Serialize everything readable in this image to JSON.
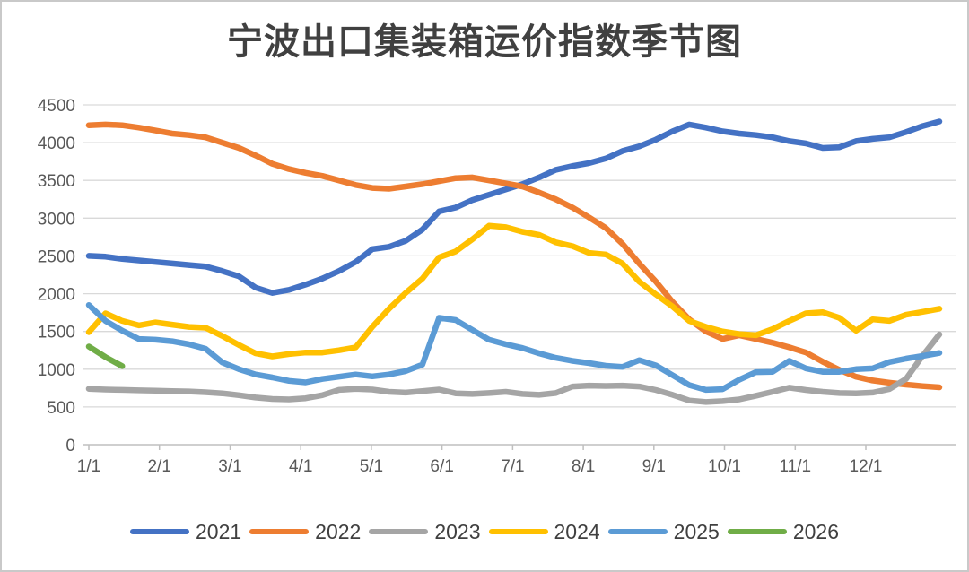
{
  "window": {
    "background": "#FFFFFF",
    "border_color": "#C9C9C9"
  },
  "title": {
    "text": "宁波出口集装箱运价指数季节图",
    "color": "#404040"
  },
  "chart_data": {
    "type": "line",
    "title": "宁波出口集装箱运价指数季节图",
    "xlabel": "",
    "ylabel": "",
    "x_tick_labels": [
      "1/1",
      "2/1",
      "3/1",
      "4/1",
      "5/1",
      "6/1",
      "7/1",
      "8/1",
      "9/1",
      "10/1",
      "11/1",
      "12/1"
    ],
    "y_ticks": [
      0,
      500,
      1000,
      1500,
      2000,
      2500,
      3000,
      3500,
      4000,
      4500
    ],
    "ylim": [
      0,
      4500
    ],
    "grid": true,
    "gridline_color": "#D9D9D9",
    "axis_color": "#BFBFBF",
    "tick_label_color": "#595959",
    "legend_position": "bottom",
    "sampling": "weekly, 52 points per full year",
    "series": [
      {
        "name": "2021",
        "color": "#4472C4",
        "values": [
          2500,
          2490,
          2460,
          2440,
          2420,
          2400,
          2380,
          2360,
          2300,
          2230,
          2080,
          2010,
          2050,
          2120,
          2200,
          2300,
          2420,
          2590,
          2620,
          2700,
          2850,
          3090,
          3140,
          3240,
          3310,
          3380,
          3450,
          3540,
          3640,
          3690,
          3730,
          3790,
          3890,
          3950,
          4040,
          4150,
          4240,
          4200,
          4150,
          4120,
          4100,
          4070,
          4020,
          3990,
          3930,
          3940,
          4020,
          4050,
          4070,
          4140,
          4220,
          4280
        ]
      },
      {
        "name": "2022",
        "color": "#ED7D31",
        "values": [
          4230,
          4240,
          4230,
          4200,
          4160,
          4120,
          4100,
          4070,
          4000,
          3930,
          3830,
          3720,
          3650,
          3600,
          3560,
          3500,
          3440,
          3400,
          3390,
          3420,
          3450,
          3490,
          3530,
          3540,
          3500,
          3460,
          3420,
          3340,
          3250,
          3140,
          3010,
          2870,
          2660,
          2400,
          2160,
          1890,
          1660,
          1500,
          1400,
          1450,
          1400,
          1350,
          1290,
          1220,
          1100,
          990,
          900,
          850,
          820,
          795,
          775,
          760
        ]
      },
      {
        "name": "2023",
        "color": "#A5A5A5",
        "values": [
          740,
          730,
          725,
          720,
          715,
          710,
          705,
          695,
          680,
          655,
          625,
          605,
          600,
          615,
          655,
          725,
          740,
          730,
          700,
          690,
          710,
          730,
          680,
          672,
          684,
          700,
          672,
          660,
          684,
          770,
          783,
          778,
          783,
          770,
          724,
          660,
          585,
          565,
          577,
          600,
          648,
          700,
          755,
          724,
          700,
          684,
          680,
          690,
          736,
          870,
          1180,
          1460
        ]
      },
      {
        "name": "2024",
        "color": "#FFC000",
        "values": [
          1490,
          1740,
          1640,
          1580,
          1620,
          1590,
          1560,
          1550,
          1440,
          1320,
          1210,
          1170,
          1200,
          1220,
          1220,
          1250,
          1290,
          1560,
          1800,
          2010,
          2200,
          2480,
          2560,
          2720,
          2900,
          2880,
          2820,
          2780,
          2680,
          2630,
          2540,
          2520,
          2400,
          2160,
          1990,
          1830,
          1640,
          1560,
          1500,
          1465,
          1450,
          1530,
          1640,
          1740,
          1755,
          1680,
          1510,
          1660,
          1640,
          1720,
          1760,
          1800
        ]
      },
      {
        "name": "2025",
        "color": "#5B9BD5",
        "values": [
          1850,
          1640,
          1510,
          1400,
          1390,
          1370,
          1330,
          1270,
          1090,
          1000,
          930,
          890,
          845,
          825,
          870,
          900,
          930,
          905,
          930,
          975,
          1060,
          1680,
          1650,
          1520,
          1390,
          1330,
          1280,
          1210,
          1150,
          1110,
          1080,
          1045,
          1030,
          1120,
          1050,
          920,
          790,
          725,
          735,
          860,
          960,
          965,
          1110,
          1010,
          965,
          965,
          1000,
          1010,
          1095,
          1140,
          1175,
          1215
        ]
      },
      {
        "name": "2026",
        "color": "#70AD47",
        "values": [
          1300,
          1160,
          1040
        ]
      }
    ]
  }
}
